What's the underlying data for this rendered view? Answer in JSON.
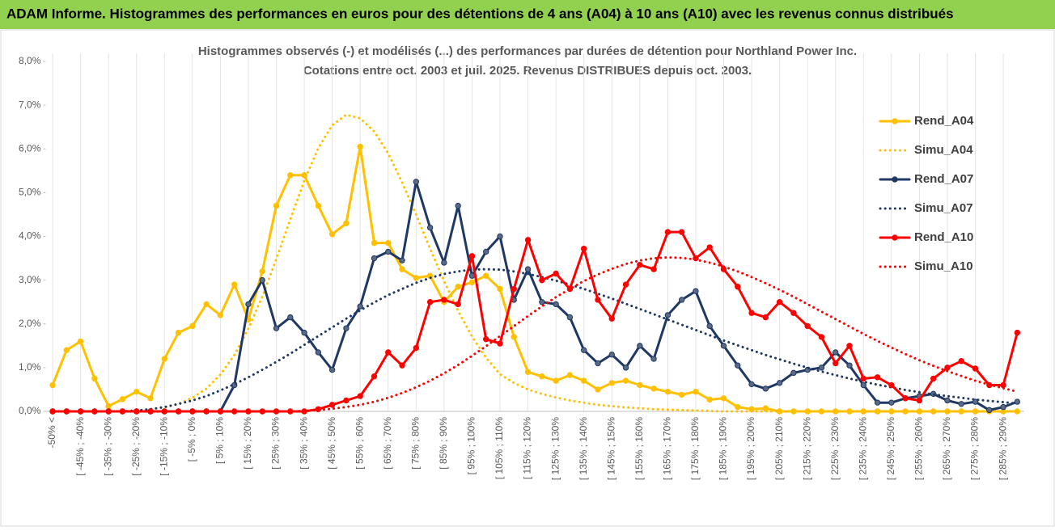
{
  "header": {
    "title": "ADAM Informe. Histogrammes des performances en euros pour des détentions de 4 ans (A04) à 10 ans (A10) avec les revenus connus distribués"
  },
  "chart_data": {
    "type": "line",
    "title": "Histogrammes observés (-) et modélisés (...) des performances par durées de détention pour Northland Power Inc.",
    "subtitle": "Cotations entre oct. 2003 et juil. 2025. Revenus DISTRIBUES depuis oct. 2003.",
    "categories": [
      "-50% <",
      null,
      "[ -45% ; -40%",
      null,
      "[ -35% ; -30%",
      null,
      "[ -25% ; -20%",
      null,
      "[ -15% ; -10%",
      null,
      "[ -5% ; 0%",
      null,
      "[ 5% ; 10%",
      null,
      "[ 15% ; 20%",
      null,
      "[ 25% ; 30%",
      null,
      "[ 35% ; 40%",
      null,
      "[ 45% ; 50%",
      null,
      "[ 55% ; 60%",
      null,
      "[ 65% ; 70%",
      null,
      "[ 75% ; 80%",
      null,
      "[ 85% ; 90%",
      null,
      "[ 95% ; 100%",
      null,
      "[ 105% ; 110%",
      null,
      "[ 115% ; 120%",
      null,
      "[ 125% ; 130%",
      null,
      "[ 135% ; 140%",
      null,
      "[ 145% ; 150%",
      null,
      "[ 155% ; 160%",
      null,
      "[ 165% ; 170%",
      null,
      "[ 175% ; 180%",
      null,
      "[ 185% ; 190%",
      null,
      "[ 195% ; 200%",
      null,
      "[ 205% ; 210%",
      null,
      "[ 215% ; 220%",
      null,
      "[ 225% ; 230%",
      null,
      "[ 235% ; 240%",
      null,
      "[ 245% ; 250%",
      null,
      "[ 255% ; 260%",
      null,
      "[ 265% ; 270%",
      null,
      "[ 275% ; 280%",
      null,
      "[ 285% ; 290%",
      null
    ],
    "series": [
      {
        "name": "Rend_A04",
        "color": "#FFC000",
        "dotted": false,
        "values": [
          0.6,
          1.4,
          1.6,
          0.75,
          0.12,
          0.28,
          0.45,
          0.3,
          1.2,
          1.8,
          1.95,
          2.45,
          2.2,
          2.9,
          2.1,
          3.2,
          4.7,
          5.4,
          5.4,
          4.7,
          4.05,
          4.3,
          6.05,
          3.85,
          3.85,
          3.25,
          3.05,
          3.1,
          2.5,
          2.85,
          2.95,
          3.1,
          2.8,
          1.7,
          0.9,
          0.8,
          0.7,
          0.83,
          0.7,
          0.5,
          0.65,
          0.7,
          0.6,
          0.52,
          0.45,
          0.38,
          0.45,
          0.27,
          0.3,
          0.1,
          0.05,
          0.07,
          0,
          0,
          0,
          0,
          0,
          0,
          0,
          0,
          0,
          0,
          0,
          0,
          0,
          0,
          0,
          0,
          0,
          0
        ]
      },
      {
        "name": "Simu_A04",
        "color": "#FFC000",
        "dotted": true,
        "values": [
          0,
          0,
          0,
          0,
          0,
          0.01,
          0.02,
          0.05,
          0.09,
          0.17,
          0.31,
          0.52,
          0.84,
          1.29,
          1.89,
          2.62,
          3.48,
          4.39,
          5.27,
          6.02,
          6.54,
          6.78,
          6.7,
          6.4,
          5.9,
          5.24,
          4.5,
          3.72,
          2.98,
          2.3,
          1.71,
          1.23,
          0.85,
          0.65,
          0.5,
          0.4,
          0.32,
          0.25,
          0.2,
          0.15,
          0.12,
          0.09,
          0.07,
          0.05,
          0.04,
          0.03,
          0.02,
          0.01,
          0,
          0,
          0,
          0,
          0,
          0,
          0,
          0,
          0,
          0,
          0,
          0,
          0,
          0,
          0,
          0,
          0,
          0,
          0,
          0,
          0,
          0
        ]
      },
      {
        "name": "Rend_A07",
        "color": "#1F3864",
        "dotted": false,
        "values": [
          0,
          0,
          0,
          0,
          0,
          0,
          0,
          0,
          0,
          0,
          0,
          0,
          0,
          0.6,
          2.45,
          3.0,
          1.9,
          2.15,
          1.8,
          1.35,
          0.95,
          1.9,
          2.4,
          3.5,
          3.65,
          3.45,
          5.25,
          4.2,
          3.4,
          4.7,
          3.1,
          3.65,
          4.0,
          2.55,
          3.25,
          2.5,
          2.45,
          2.15,
          1.4,
          1.1,
          1.3,
          1.0,
          1.5,
          1.2,
          2.2,
          2.55,
          2.75,
          1.95,
          1.5,
          1.05,
          0.62,
          0.52,
          0.65,
          0.88,
          0.95,
          1.0,
          1.35,
          1.05,
          0.6,
          0.2,
          0.2,
          0.3,
          0.35,
          0.4,
          0.25,
          0.17,
          0.22,
          0.03,
          0.1,
          0.22
        ]
      },
      {
        "name": "Simu_A07",
        "color": "#1F3864",
        "dotted": true,
        "values": [
          0,
          0,
          0,
          0,
          0,
          0,
          0.02,
          0.05,
          0.1,
          0.17,
          0.25,
          0.35,
          0.48,
          0.62,
          0.78,
          0.95,
          1.13,
          1.32,
          1.52,
          1.72,
          1.92,
          2.12,
          2.31,
          2.49,
          2.66,
          2.8,
          2.94,
          3.05,
          3.14,
          3.2,
          3.24,
          3.25,
          3.24,
          3.2,
          3.14,
          3.07,
          2.99,
          2.9,
          2.8,
          2.69,
          2.58,
          2.46,
          2.34,
          2.22,
          2.1,
          1.98,
          1.86,
          1.74,
          1.62,
          1.51,
          1.4,
          1.29,
          1.19,
          1.09,
          1.0,
          0.91,
          0.83,
          0.75,
          0.68,
          0.61,
          0.55,
          0.49,
          0.44,
          0.39,
          0.35,
          0.31,
          0.27,
          0.24,
          0.21,
          0.18
        ]
      },
      {
        "name": "Rend_A10",
        "color": "#FF0000",
        "dotted": false,
        "values": [
          0,
          0,
          0,
          0,
          0,
          0,
          0,
          0,
          0,
          0,
          0,
          0,
          0,
          0,
          0,
          0,
          0,
          0,
          0,
          0.05,
          0.15,
          0.25,
          0.35,
          0.8,
          1.35,
          1.05,
          1.45,
          2.5,
          2.55,
          2.45,
          3.55,
          1.65,
          1.55,
          2.8,
          3.92,
          3.0,
          3.15,
          2.8,
          3.72,
          2.55,
          2.12,
          2.9,
          3.35,
          3.25,
          4.1,
          4.1,
          3.5,
          3.75,
          3.25,
          2.85,
          2.25,
          2.15,
          2.5,
          2.25,
          1.95,
          1.7,
          1.1,
          1.5,
          0.75,
          0.78,
          0.6,
          0.3,
          0.25,
          0.75,
          1.0,
          1.15,
          0.98,
          0.6,
          0.6,
          1.8
        ]
      },
      {
        "name": "Simu_A10",
        "color": "#FF0000",
        "dotted": true,
        "values": [
          0,
          0,
          0,
          0,
          0,
          0,
          0,
          0,
          0,
          0,
          0,
          0,
          0,
          0,
          0,
          0,
          0,
          0,
          0.01,
          0.03,
          0.06,
          0.1,
          0.15,
          0.22,
          0.31,
          0.42,
          0.55,
          0.7,
          0.87,
          1.06,
          1.27,
          1.49,
          1.72,
          1.95,
          2.18,
          2.4,
          2.61,
          2.8,
          2.98,
          3.13,
          3.26,
          3.37,
          3.45,
          3.5,
          3.52,
          3.51,
          3.47,
          3.4,
          3.31,
          3.2,
          3.07,
          2.93,
          2.78,
          2.62,
          2.45,
          2.28,
          2.11,
          1.94,
          1.77,
          1.61,
          1.46,
          1.31,
          1.17,
          1.04,
          0.92,
          0.81,
          0.7,
          0.61,
          0.53,
          0.45
        ]
      }
    ],
    "ylim": [
      0,
      8
    ],
    "yticks": [
      {
        "value": 0,
        "label": "0,0%"
      },
      {
        "value": 1,
        "label": "1,0%"
      },
      {
        "value": 2,
        "label": "2,0%"
      },
      {
        "value": 3,
        "label": "3,0%"
      },
      {
        "value": 4,
        "label": "4,0%"
      },
      {
        "value": 5,
        "label": "5,0%"
      },
      {
        "value": 6,
        "label": "6,0%"
      },
      {
        "value": 7,
        "label": "7,0%"
      },
      {
        "value": 8,
        "label": "8,0%"
      }
    ],
    "legend": "right"
  }
}
